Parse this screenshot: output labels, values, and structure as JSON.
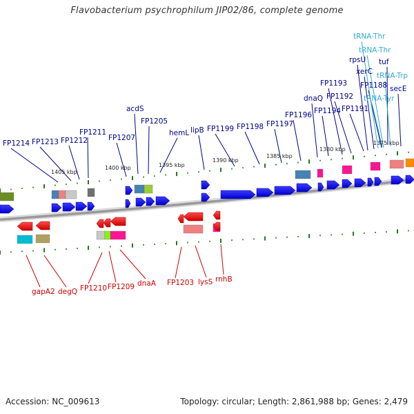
{
  "title": "Flavobacterium psychrophilum JIP02/86, complete genome",
  "footer": {
    "accession": "Accession: NC_009613",
    "topology": "Topology: circular; Length: 2,861,988 bp; Genes: 2,479"
  },
  "colors": {
    "backbone": "#9a9a9a",
    "forward_label": "#00008b",
    "reverse_label": "#cc0000",
    "trna_label": "#33aacc",
    "tick": "#227722",
    "forward_gene": "#0000ff",
    "reverse_gene": "#ff0000"
  },
  "scale_labels": [
    "1405 kbp",
    "1400 kbp",
    "1395 kbp",
    "1390 kbp",
    "1385 kbp",
    "1380 kbp",
    "1375 kbp"
  ],
  "forward_genes": [
    {
      "label": "FP1214",
      "kind": "gene"
    },
    {
      "label": "FP1213",
      "kind": "gene"
    },
    {
      "label": "FP1212",
      "kind": "gene"
    },
    {
      "label": "FP1211",
      "kind": "gene"
    },
    {
      "label": "FP1207",
      "kind": "gene"
    },
    {
      "label": "acdS",
      "kind": "gene"
    },
    {
      "label": "FP1205",
      "kind": "gene"
    },
    {
      "label": "hemL",
      "kind": "gene"
    },
    {
      "label": "lipB",
      "kind": "gene"
    },
    {
      "label": "FP1199",
      "kind": "gene"
    },
    {
      "label": "FP1198",
      "kind": "gene"
    },
    {
      "label": "FP1197",
      "kind": "gene"
    },
    {
      "label": "FP1196",
      "kind": "gene"
    },
    {
      "label": "dnaQ",
      "kind": "gene"
    },
    {
      "label": "FP1194",
      "kind": "gene"
    },
    {
      "label": "FP1193",
      "kind": "gene"
    },
    {
      "label": "FP1192",
      "kind": "gene"
    },
    {
      "label": "FP1191",
      "kind": "gene"
    },
    {
      "label": "rpsU",
      "kind": "gene"
    },
    {
      "label": "xerC",
      "kind": "gene"
    },
    {
      "label": "FP1188",
      "kind": "gene"
    },
    {
      "label": "tuf",
      "kind": "gene"
    },
    {
      "label": "secE",
      "kind": "gene"
    },
    {
      "label": "tRNA-Thr",
      "kind": "trna"
    },
    {
      "label": "tRNA-Thr",
      "kind": "trna"
    },
    {
      "label": "tRNA-Trp",
      "kind": "trna"
    },
    {
      "label": "tRNA-Tyr",
      "kind": "trna"
    }
  ],
  "reverse_genes": [
    {
      "label": "gapA2"
    },
    {
      "label": "degQ"
    },
    {
      "label": "FP1210"
    },
    {
      "label": "FP1209"
    },
    {
      "label": "dnaA"
    },
    {
      "label": "FP1203"
    },
    {
      "label": "lysS"
    },
    {
      "label": "rnhB"
    }
  ]
}
